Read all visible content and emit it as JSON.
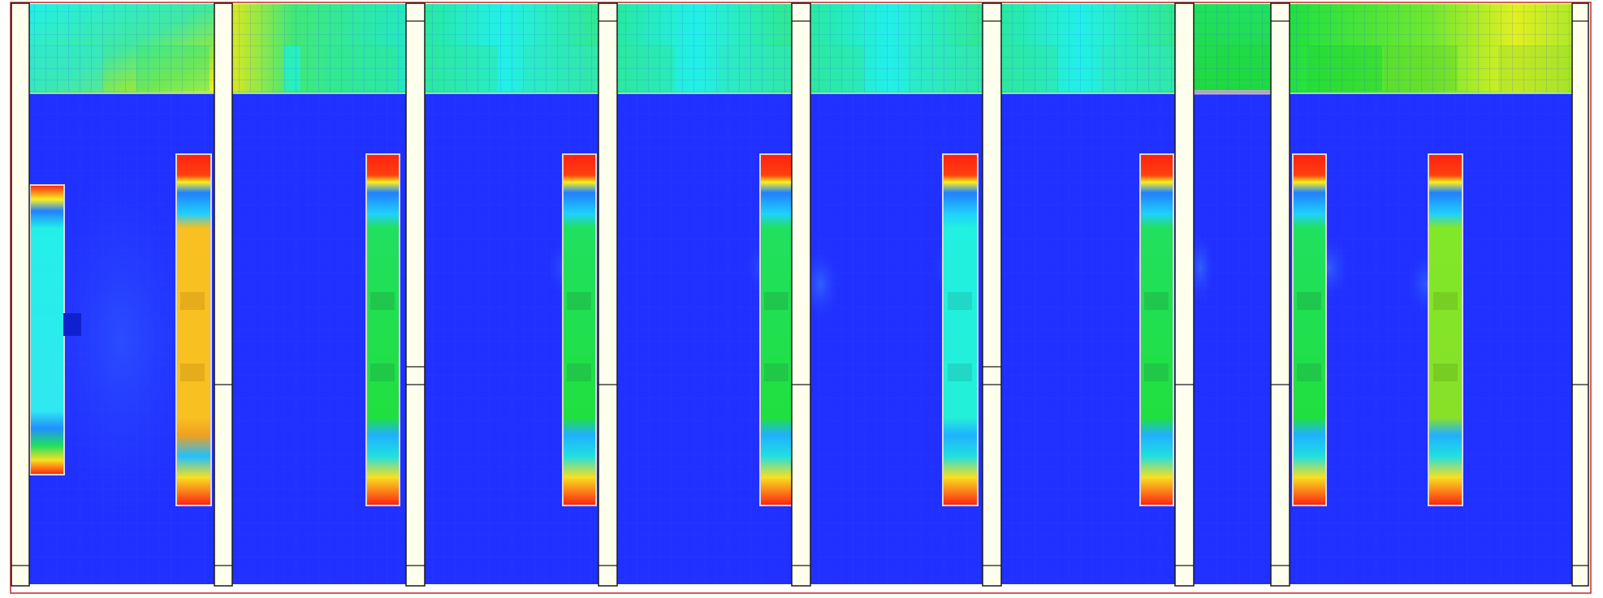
{
  "colors": {
    "outer_frame": "#cc2222",
    "wall_fill": "#ffffee",
    "wall_stroke": "#1a1a1a",
    "floor_low": "#2030ff",
    "floor_mid": "#2c5cff",
    "cyan": "#22f0e8",
    "green": "#20e020",
    "lime": "#80e828",
    "yellow": "#f8f020",
    "orange": "#f8c020",
    "red": "#ff2010",
    "rack_edge": "#d8d8d8",
    "grid_line": "#3a48ff"
  },
  "palette": [
    "#2030ff",
    "#2080ff",
    "#20d0ff",
    "#22f0e8",
    "#20e8a0",
    "#20e020",
    "#80e828",
    "#f8f020",
    "#f8c020",
    "#ff6010",
    "#ff2010"
  ],
  "rooms": [
    {
      "id": "room-1",
      "ceiling_tone": "cyan-yellow",
      "rack_tones": [
        "cyan",
        "orange"
      ]
    },
    {
      "id": "room-2",
      "ceiling_tone": "green-yellow",
      "rack_tones": [
        "green"
      ]
    },
    {
      "id": "room-3",
      "ceiling_tone": "cyan-green",
      "rack_tones": [
        "green"
      ]
    },
    {
      "id": "room-4",
      "ceiling_tone": "cyan-green",
      "rack_tones": [
        "green"
      ]
    },
    {
      "id": "room-5",
      "ceiling_tone": "cyan-green",
      "rack_tones": [
        "cyan"
      ]
    },
    {
      "id": "room-6",
      "ceiling_tone": "cyan-green",
      "rack_tones": [
        "green"
      ]
    },
    {
      "id": "room-7",
      "ceiling_tone": "green",
      "rack_tones": []
    },
    {
      "id": "room-8",
      "ceiling_tone": "green-yellow",
      "rack_tones": [
        "green",
        "lime"
      ]
    }
  ]
}
